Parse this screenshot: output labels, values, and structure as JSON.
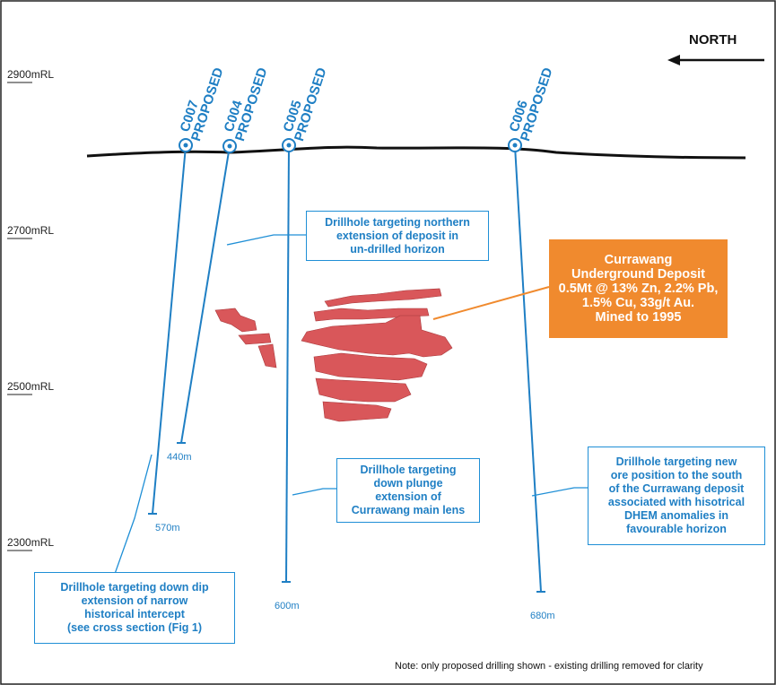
{
  "north_label": "NORTH",
  "rl_levels": [
    {
      "label": "2900mRL"
    },
    {
      "label": "2700mRL"
    },
    {
      "label": "2500mRL"
    },
    {
      "label": "2300mRL"
    }
  ],
  "drillholes": [
    {
      "id": "C007",
      "status": "PROPOSED",
      "depth": "570m"
    },
    {
      "id": "C004",
      "status": "PROPOSED",
      "depth": "440m"
    },
    {
      "id": "C005",
      "status": "PROPOSED",
      "depth": "600m"
    },
    {
      "id": "C006",
      "status": "PROPOSED",
      "depth": "680m"
    }
  ],
  "callouts": {
    "northern": "Drillhole targeting northern\nextension of deposit in\nun-drilled horizon",
    "down_plunge": "Drillhole targeting\ndown plunge\nextension of\nCurrawang main lens",
    "south": "Drillhole targeting new\nore position to the south\nof the Currawang deposit\nassociated with hisotrical\nDHEM  anomalies in\nfavourable horizon",
    "down_dip": "Drillhole targeting down dip\nextension of narrow\nhistorical intercept\n(see cross section (Fig 1)"
  },
  "deposit_box": "Currawang\nUnderground Deposit\n0.5Mt @ 13% Zn, 2.2% Pb,\n1.5% Cu, 33g/t Au.\nMined to 1995",
  "note": "Note: only proposed drilling shown - existing drilling removed for clarity",
  "colors": {
    "drillhole": "#1f7fc4",
    "deposit_box": "#f08a2e",
    "orebody": "#d9575a"
  }
}
